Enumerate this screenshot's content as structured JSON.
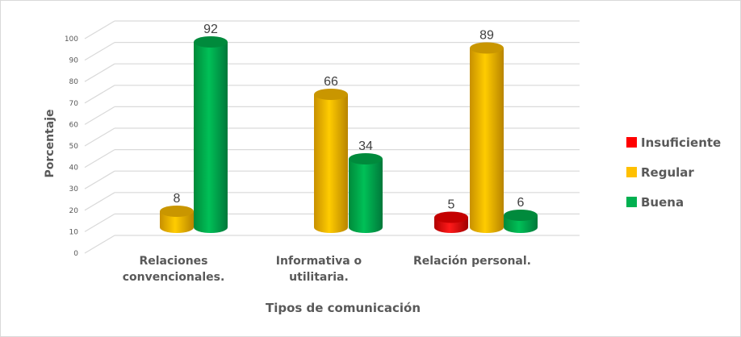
{
  "chart_data": {
    "type": "bar",
    "subtype": "3d-cylinder-clustered",
    "title": "",
    "xlabel": "Tipos de comunicación",
    "ylabel": "Porcentaje",
    "ylim": [
      0,
      100
    ],
    "yticks": [
      "0",
      "10",
      "20",
      "30",
      "40",
      "50",
      "60",
      "70",
      "80",
      "90",
      "100"
    ],
    "grid": true,
    "legend_position": "right",
    "categories": [
      "Relaciones convencionales.",
      "Informativa o utilitaria.",
      "Relación personal."
    ],
    "category_lines": [
      [
        "Relaciones",
        "convencionales."
      ],
      [
        "Informativa o",
        "utilitaria."
      ],
      [
        "Relación personal."
      ]
    ],
    "series": [
      {
        "name": "Insuficiente",
        "color": "#ff0000",
        "values": [
          null,
          null,
          5
        ]
      },
      {
        "name": "Regular",
        "color": "#ffc000",
        "values": [
          8,
          66,
          89
        ]
      },
      {
        "name": "Buena",
        "color": "#00b050",
        "values": [
          92,
          34,
          6
        ]
      }
    ]
  }
}
